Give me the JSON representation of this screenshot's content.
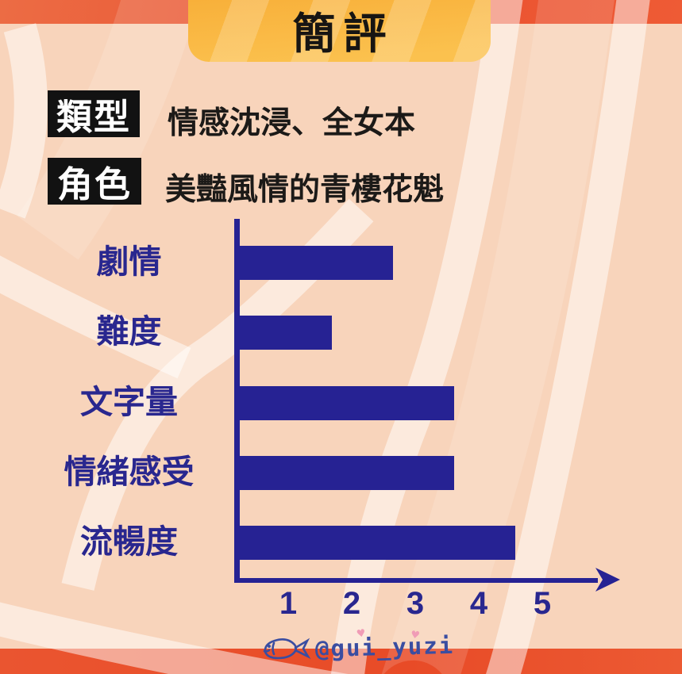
{
  "title": "簡評",
  "info_rows": [
    {
      "label": "類型",
      "value": "情感沈浸、全女本"
    },
    {
      "label": "角色",
      "value": "美豔風情的青樓花魁"
    }
  ],
  "chart_data": {
    "type": "bar",
    "orientation": "horizontal",
    "categories": [
      "劇情",
      "難度",
      "文字量",
      "情緒感受",
      "流暢度"
    ],
    "values": [
      2.5,
      1.5,
      3.5,
      3.5,
      4.5
    ],
    "x_ticks": [
      "1",
      "2",
      "3",
      "4",
      "5"
    ],
    "xlim": [
      0,
      5
    ],
    "grid": false,
    "legend": false,
    "bar_color": "#262293",
    "axis_color": "#262293",
    "label_color": "#29278f"
  },
  "watermark": {
    "icon": "fish-icon",
    "handle": "@gui_yuzi",
    "heart": "♥"
  },
  "colors": {
    "background": "#f8d4bb",
    "stripe": "#fdeadd",
    "top_strip": "#e95030",
    "bottom_strip": "#e84b27",
    "banner": "#f9b844",
    "navy": "#262293",
    "tag_box": "#121212",
    "tag_text": "#ffffff",
    "heart": "#f09cb6"
  }
}
